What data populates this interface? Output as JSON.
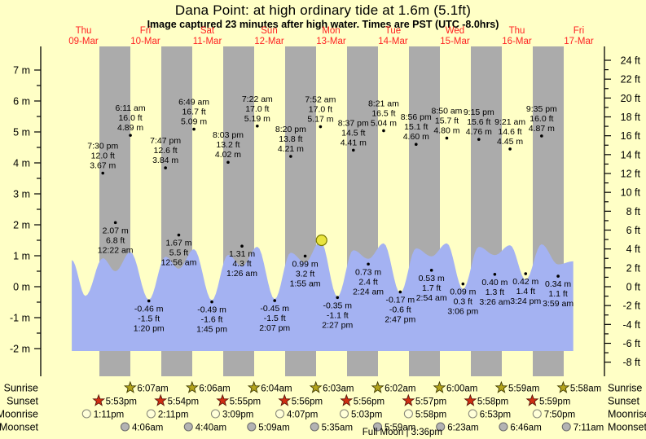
{
  "header": {
    "title": "Dana Point: at high  ordinary tide at 1.6m (5.1ft)",
    "subtitle": "Image captured 23 minutes after high water. Times are PST (UTC -8.0hrs)"
  },
  "colors": {
    "background": "#ffffc6",
    "night_band": "#ababab",
    "water": "#a4b2f2",
    "day_label_red": "#ff2222",
    "axis_black": "#000000",
    "marker_fill": "#e9e43e",
    "marker_stroke": "#787800",
    "sunrise_star_fill": "#b3a41c",
    "sunrise_star_stroke": "#3f3a00",
    "sunset_star_fill": "#d02e12",
    "sunset_star_stroke": "#5a150a",
    "moonrise_fill": "#ffffd9",
    "moonrise_stroke": "#8a8a7a",
    "moonset_fill": "#b3b3b3",
    "moonset_stroke": "#6e6e6e"
  },
  "chart_data": {
    "type": "area",
    "title": "Dana Point: at high  ordinary tide at 1.6m (5.1ft)",
    "subtitle": "Image captured 23 minutes after high water. Times are PST (UTC -8.0hrs)",
    "y_axis_left": {
      "unit": "m",
      "min": -2,
      "max": 7,
      "label_step": 1,
      "minor_step": 0.5
    },
    "y_axis_right": {
      "unit": "ft",
      "min": -8,
      "max": 24,
      "label_step": 2,
      "minor_step": 1
    },
    "days": [
      {
        "weekday": "Thu",
        "date": "09-Mar",
        "td": 0.5
      },
      {
        "weekday": "Fri",
        "date": "10-Mar",
        "td": 1.5
      },
      {
        "weekday": "Sat",
        "date": "11-Mar",
        "td": 2.5
      },
      {
        "weekday": "Sun",
        "date": "12-Mar",
        "td": 3.5
      },
      {
        "weekday": "Mon",
        "date": "13-Mar",
        "td": 4.5
      },
      {
        "weekday": "Tue",
        "date": "14-Mar",
        "td": 5.5
      },
      {
        "weekday": "Wed",
        "date": "15-Mar",
        "td": 6.5
      },
      {
        "weekday": "Thu",
        "date": "16-Mar",
        "td": 7.5
      },
      {
        "weekday": "Fri",
        "date": "17-Mar",
        "td": 8.5
      }
    ],
    "tide_events": [
      {
        "time": "7:30 pm",
        "ft": "12.0 ft",
        "m": "3.67 m",
        "m_val": 3.67,
        "kind": "high",
        "td": 0.8125
      },
      {
        "time": "12:22 am",
        "ft": "6.8 ft",
        "m": "2.07 m",
        "m_val": 2.07,
        "kind": "low",
        "td": 1.0153
      },
      {
        "time": "6:11 am",
        "ft": "16.0 ft",
        "m": "4.89 m",
        "m_val": 4.89,
        "kind": "high",
        "td": 1.2576
      },
      {
        "time": "1:20 pm",
        "ft": "-1.5 ft",
        "m": "-0.46 m",
        "m_val": -0.46,
        "kind": "low",
        "td": 1.5556
      },
      {
        "time": "7:47 pm",
        "ft": "12.6 ft",
        "m": "3.84 m",
        "m_val": 3.84,
        "kind": "high",
        "td": 1.8243
      },
      {
        "time": "12:56 am",
        "ft": "5.5 ft",
        "m": "1.67 m",
        "m_val": 1.67,
        "kind": "low",
        "td": 2.0389
      },
      {
        "time": "6:49 am",
        "ft": "16.7 ft",
        "m": "5.09 m",
        "m_val": 5.09,
        "kind": "high",
        "td": 2.284
      },
      {
        "time": "1:45 pm",
        "ft": "-1.6 ft",
        "m": "-0.49 m",
        "m_val": -0.49,
        "kind": "low",
        "td": 2.5729
      },
      {
        "time": "8:03 pm",
        "ft": "13.2 ft",
        "m": "4.02 m",
        "m_val": 4.02,
        "kind": "high",
        "td": 2.8354
      },
      {
        "time": "1:26 am",
        "ft": "4.3 ft",
        "m": "1.31 m",
        "m_val": 1.31,
        "kind": "low",
        "td": 3.0597
      },
      {
        "time": "7:22 am",
        "ft": "17.0 ft",
        "m": "5.19 m",
        "m_val": 5.19,
        "kind": "high",
        "td": 3.3069
      },
      {
        "time": "2:07 pm",
        "ft": "-1.5 ft",
        "m": "-0.45 m",
        "m_val": -0.45,
        "kind": "low",
        "td": 3.5882
      },
      {
        "time": "8:20 pm",
        "ft": "13.8 ft",
        "m": "4.21 m",
        "m_val": 4.21,
        "kind": "high",
        "td": 3.8472
      },
      {
        "time": "1:55 am",
        "ft": "3.2 ft",
        "m": "0.99 m",
        "m_val": 0.99,
        "kind": "low",
        "td": 4.0799
      },
      {
        "time": "7:52 am",
        "ft": "17.0 ft",
        "m": "5.17 m",
        "m_val": 5.17,
        "kind": "high",
        "td": 4.3278
      },
      {
        "time": "2:27 pm",
        "ft": "-1.1 ft",
        "m": "-0.35 m",
        "m_val": -0.35,
        "kind": "low",
        "td": 4.6021
      },
      {
        "time": "8:37 pm",
        "ft": "14.5 ft",
        "m": "4.41 m",
        "m_val": 4.41,
        "kind": "high",
        "td": 4.859
      },
      {
        "time": "2:24 am",
        "ft": "2.4 ft",
        "m": "0.73 m",
        "m_val": 0.73,
        "kind": "low",
        "td": 5.1
      },
      {
        "time": "8:21 am",
        "ft": "16.5 ft",
        "m": "5.04 m",
        "m_val": 5.04,
        "kind": "high",
        "td": 5.3479
      },
      {
        "time": "2:47 pm",
        "ft": "-0.6 ft",
        "m": "-0.17 m",
        "m_val": -0.17,
        "kind": "low",
        "td": 5.616
      },
      {
        "time": "8:56 pm",
        "ft": "15.1 ft",
        "m": "4.60 m",
        "m_val": 4.6,
        "kind": "high",
        "td": 5.8722
      },
      {
        "time": "2:54 am",
        "ft": "1.7 ft",
        "m": "0.53 m",
        "m_val": 0.53,
        "kind": "low",
        "td": 6.1208
      },
      {
        "time": "8:50 am",
        "ft": "15.7 ft",
        "m": "4.80 m",
        "m_val": 4.8,
        "kind": "high",
        "td": 6.3681
      },
      {
        "time": "3:06 pm",
        "ft": "0.3 ft",
        "m": "0.09 m",
        "m_val": 0.09,
        "kind": "low",
        "td": 6.6292
      },
      {
        "time": "9:15 pm",
        "ft": "15.6 ft",
        "m": "4.76 m",
        "m_val": 4.76,
        "kind": "high",
        "td": 6.8854
      },
      {
        "time": "3:26 am",
        "ft": "1.3 ft",
        "m": "0.40 m",
        "m_val": 0.4,
        "kind": "low",
        "td": 7.1431
      },
      {
        "time": "9:21 am",
        "ft": "14.6 ft",
        "m": "4.45 m",
        "m_val": 4.45,
        "kind": "high",
        "td": 7.3896
      },
      {
        "time": "3:24 pm",
        "ft": "1.4 ft",
        "m": "0.42 m",
        "m_val": 0.42,
        "kind": "low",
        "td": 7.6417
      },
      {
        "time": "9:35 pm",
        "ft": "16.0 ft",
        "m": "4.87 m",
        "m_val": 4.87,
        "kind": "high",
        "td": 7.8993
      },
      {
        "time": "3:59 am",
        "ft": "1.1 ft",
        "m": "0.34 m",
        "m_val": 0.34,
        "kind": "low",
        "td": 8.166
      }
    ],
    "curve_display": [
      [
        0.31,
        0.86
      ],
      [
        0.531,
        -0.3
      ],
      [
        0.8125,
        0.92
      ],
      [
        1.0153,
        0.5
      ],
      [
        1.2576,
        1.12
      ],
      [
        1.5556,
        -0.42
      ],
      [
        1.8243,
        0.97
      ],
      [
        2.0389,
        0.58
      ],
      [
        2.284,
        1.21
      ],
      [
        2.5729,
        -0.44
      ],
      [
        2.8354,
        1.03
      ],
      [
        3.0597,
        0.66
      ],
      [
        3.3069,
        1.29
      ],
      [
        3.5882,
        -0.4
      ],
      [
        3.8472,
        1.1
      ],
      [
        4.0799,
        0.78
      ],
      [
        4.3278,
        1.48
      ],
      [
        4.6021,
        -0.32
      ],
      [
        4.859,
        1.18
      ],
      [
        5.1,
        0.9
      ],
      [
        5.3479,
        1.4
      ],
      [
        5.616,
        -0.21
      ],
      [
        5.8722,
        1.24
      ],
      [
        6.1208,
        0.98
      ],
      [
        6.3681,
        1.4
      ],
      [
        6.6292,
        -0.08
      ],
      [
        6.8854,
        1.29
      ],
      [
        7.1431,
        1.02
      ],
      [
        7.3896,
        1.34
      ],
      [
        7.6417,
        0.22
      ],
      [
        7.8993,
        1.37
      ],
      [
        8.166,
        0.72
      ],
      [
        8.41,
        0.82
      ]
    ],
    "current_marker": {
      "td": 4.345,
      "m_display": 1.5,
      "current_tide_m": "1.6m",
      "current_tide_ft": "5.1ft"
    }
  },
  "astro": {
    "rows": [
      {
        "label": "Sunrise",
        "icon": "sunrise-star",
        "entries": [
          {
            "time": "6:07am",
            "td": 1.2549
          },
          {
            "time": "6:06am",
            "td": 2.2542
          },
          {
            "time": "6:04am",
            "td": 3.2528
          },
          {
            "time": "6:03am",
            "td": 4.2521
          },
          {
            "time": "6:02am",
            "td": 5.2514
          },
          {
            "time": "6:00am",
            "td": 6.25
          },
          {
            "time": "5:59am",
            "td": 7.2493
          },
          {
            "time": "5:58am",
            "td": 8.2486
          }
        ]
      },
      {
        "label": "Sunset",
        "icon": "sunset-star",
        "entries": [
          {
            "time": "5:53pm",
            "td": 0.7451
          },
          {
            "time": "5:54pm",
            "td": 1.7458
          },
          {
            "time": "5:55pm",
            "td": 2.7465
          },
          {
            "time": "5:56pm",
            "td": 3.7472
          },
          {
            "time": "5:56pm",
            "td": 4.7472
          },
          {
            "time": "5:57pm",
            "td": 5.7479
          },
          {
            "time": "5:58pm",
            "td": 6.7486
          },
          {
            "time": "5:59pm",
            "td": 7.7493
          }
        ]
      },
      {
        "label": "Moonrise",
        "icon": "moonrise-circle",
        "entries": [
          {
            "time": "1:11pm",
            "td": 0.5493
          },
          {
            "time": "2:11pm",
            "td": 1.591
          },
          {
            "time": "3:09pm",
            "td": 2.6313
          },
          {
            "time": "4:07pm",
            "td": 3.6715
          },
          {
            "time": "5:03pm",
            "td": 4.7104
          },
          {
            "time": "5:58pm",
            "td": 5.7486
          },
          {
            "time": "6:53pm",
            "td": 6.7868
          },
          {
            "time": "7:50pm",
            "td": 7.8264
          }
        ]
      },
      {
        "label": "Moonset",
        "icon": "moonset-circle",
        "entries": [
          {
            "time": "4:06am",
            "td": 1.1708
          },
          {
            "time": "4:40am",
            "td": 2.1944
          },
          {
            "time": "5:09am",
            "td": 3.2146
          },
          {
            "time": "5:35am",
            "td": 4.2326
          },
          {
            "time": "5:59am",
            "td": 5.2493
          },
          {
            "time": "6:23am",
            "td": 6.266
          },
          {
            "time": "6:46am",
            "td": 7.2819
          },
          {
            "time": "7:11am",
            "td": 8.2993
          }
        ]
      }
    ],
    "full_moon": {
      "label": "Full Moon",
      "time": "3:36pm",
      "td": 5.65
    }
  }
}
